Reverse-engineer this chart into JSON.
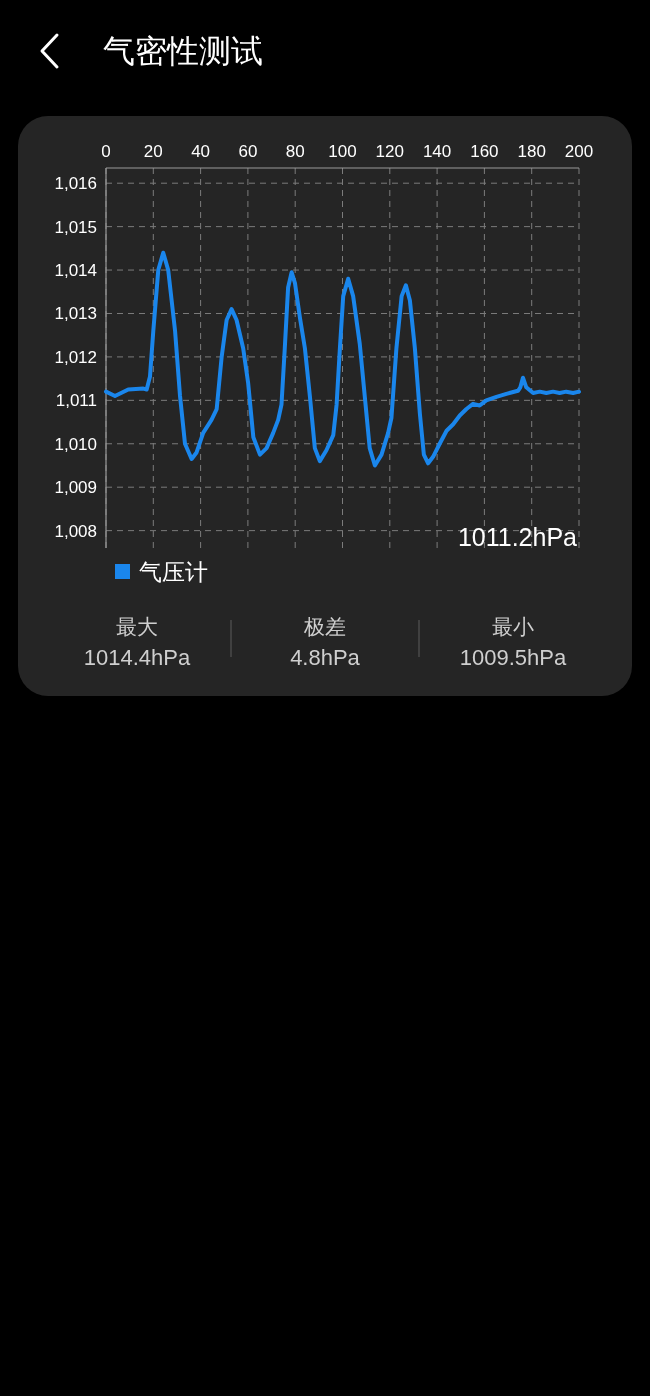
{
  "chart_data": {
    "type": "line",
    "title": "气密性测试",
    "x": [
      0,
      3.8,
      9.4,
      15.8,
      17.2,
      18.6,
      20.0,
      22.1,
      24.2,
      26.3,
      29.2,
      31.3,
      33.4,
      36.2,
      38.3,
      41.1,
      44.6,
      46.8,
      48.9,
      51.0,
      53.1,
      55.2,
      58.0,
      60.1,
      62.3,
      65.1,
      67.9,
      70.7,
      72.8,
      74.2,
      75.6,
      77.0,
      78.5,
      79.9,
      82.0,
      84.1,
      86.2,
      88.3,
      90.4,
      93.2,
      96.1,
      97.5,
      98.9,
      100.3,
      102.4,
      104.5,
      107.3,
      109.4,
      111.5,
      113.7,
      116.5,
      119.3,
      120.7,
      122.8,
      125.0,
      126.8,
      128.5,
      130.6,
      132.7,
      134.4,
      136.2,
      138.3,
      141.1,
      144.0,
      146.8,
      149.6,
      152.4,
      155.2,
      158.0,
      160.8,
      165.1,
      169.3,
      174.2,
      175.2,
      176.3,
      177.7,
      180.6,
      183.4,
      186.2,
      189.0,
      191.8,
      194.6,
      197.5,
      200
    ],
    "series": [
      {
        "name": "气压计",
        "color": "#1a86ec",
        "values": [
          1011.2,
          1011.1,
          1011.25,
          1011.27,
          1011.25,
          1011.55,
          1012.6,
          1014.0,
          1014.4,
          1014.0,
          1012.6,
          1011.1,
          1010.0,
          1009.65,
          1009.8,
          1010.25,
          1010.55,
          1010.8,
          1012.0,
          1012.85,
          1013.1,
          1012.85,
          1012.2,
          1011.4,
          1010.15,
          1009.75,
          1009.9,
          1010.25,
          1010.55,
          1010.9,
          1012.2,
          1013.6,
          1013.95,
          1013.7,
          1012.9,
          1012.2,
          1011.1,
          1009.9,
          1009.6,
          1009.85,
          1010.2,
          1010.9,
          1012.2,
          1013.4,
          1013.8,
          1013.4,
          1012.3,
          1011.1,
          1009.9,
          1009.5,
          1009.75,
          1010.25,
          1010.6,
          1012.2,
          1013.4,
          1013.65,
          1013.3,
          1012.2,
          1010.7,
          1009.75,
          1009.55,
          1009.7,
          1010.0,
          1010.3,
          1010.45,
          1010.65,
          1010.8,
          1010.92,
          1010.88,
          1011.0,
          1011.08,
          1011.15,
          1011.22,
          1011.3,
          1011.52,
          1011.3,
          1011.17,
          1011.2,
          1011.17,
          1011.2,
          1011.17,
          1011.2,
          1011.17,
          1011.2
        ]
      }
    ],
    "xlim": [
      0,
      200
    ],
    "xticks": [
      0,
      20,
      40,
      60,
      80,
      100,
      120,
      140,
      160,
      180,
      200
    ],
    "ylim": [
      1007.6,
      1016.35
    ],
    "yticks": [
      {
        "value": 1008,
        "label": "1,008"
      },
      {
        "value": 1009,
        "label": "1,009"
      },
      {
        "value": 1010,
        "label": "1,010"
      },
      {
        "value": 1011,
        "label": "1,011"
      },
      {
        "value": 1012,
        "label": "1,012"
      },
      {
        "value": 1013,
        "label": "1,013"
      },
      {
        "value": 1014,
        "label": "1,014"
      },
      {
        "value": 1015,
        "label": "1,015"
      },
      {
        "value": 1016,
        "label": "1,016"
      }
    ],
    "grid": true,
    "legend": "bottom left",
    "line_style": "solid",
    "annotations": [
      "1011.2hPa",
      "最大",
      "1014.4hPa",
      "极差",
      "4.8hPa",
      "最小",
      "1009.5hPa"
    ]
  }
}
